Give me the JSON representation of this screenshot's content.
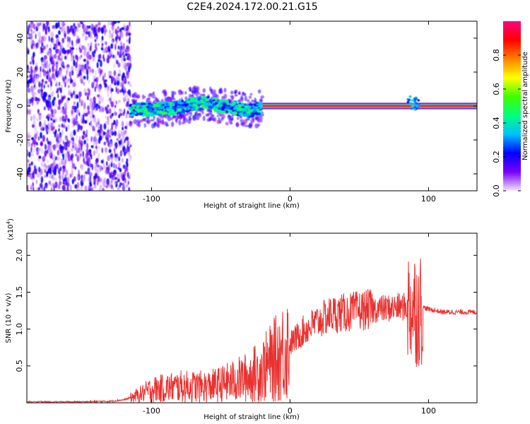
{
  "title": "C2E4.2024.172.00.21.G15",
  "chart_data": [
    {
      "type": "heatmap",
      "xlabel": "Height of straight line (km)",
      "ylabel": "Frequency (Hz)",
      "xlim": [
        -190,
        135
      ],
      "ylim": [
        -50,
        50
      ],
      "xticks": [
        -100,
        0,
        100
      ],
      "yticks": [
        40,
        20,
        0,
        -20,
        -40
      ],
      "colorbar": {
        "label": "Normalized spectral amplitude",
        "range": [
          0,
          1
        ],
        "ticks": [
          0.0,
          0.2,
          0.4,
          0.6,
          0.8
        ],
        "colormap": [
          "#f2e6ff",
          "#7a00ff",
          "#0000ff",
          "#00c0ff",
          "#00ff80",
          "#40ff00",
          "#ffff00",
          "#ff8000",
          "#ff0000",
          "#ff0080"
        ]
      },
      "regions": [
        {
          "name": "noise",
          "x_range": [
            -190,
            -115
          ],
          "freq_range": [
            -50,
            50
          ],
          "amplitude": 0.1
        },
        {
          "name": "scintillating-tone",
          "x_range": [
            -115,
            -20
          ],
          "freq_range": [
            -6,
            6
          ],
          "amplitude": 0.4
        },
        {
          "name": "stable-tone",
          "x_range": [
            -20,
            135
          ],
          "freq": 0,
          "amplitude": 0.95
        }
      ],
      "tone_center": {
        "x": [
          -115,
          -100,
          -80,
          -70,
          -60,
          -50,
          -40,
          -30,
          -20,
          -10,
          0,
          10,
          20,
          40,
          60,
          80,
          90,
          100,
          120,
          135
        ],
        "y": [
          -2,
          -2,
          -1,
          1,
          2,
          0,
          -1,
          -3,
          -1,
          0,
          0,
          0,
          0,
          0,
          0,
          0,
          1,
          0,
          0,
          0
        ]
      }
    },
    {
      "type": "line",
      "xlabel": "Height of straight line (km)",
      "ylabel": "SNR (10 * v/v)",
      "y_scale_note": "(x10",
      "y_scale_exp": "4",
      "y_scale_suffix": ")",
      "xlim": [
        -190,
        135
      ],
      "ylim": [
        0,
        2.3
      ],
      "xticks": [
        -100,
        0,
        100
      ],
      "yticks": [
        0.5,
        1.0,
        1.5,
        2.0
      ],
      "series": [
        {
          "color": "#e8312f",
          "x": [
            -190,
            -160,
            -130,
            -120,
            -110,
            -100,
            -90,
            -80,
            -70,
            -60,
            -50,
            -40,
            -30,
            -20,
            -10,
            0,
            10,
            20,
            30,
            40,
            50,
            60,
            70,
            80,
            85,
            90,
            93,
            95,
            100,
            110,
            120,
            135
          ],
          "y": [
            0.01,
            0.01,
            0.02,
            0.04,
            0.1,
            0.18,
            0.2,
            0.22,
            0.22,
            0.22,
            0.25,
            0.3,
            0.35,
            0.45,
            0.6,
            0.8,
            0.98,
            1.1,
            1.2,
            1.22,
            1.25,
            1.27,
            1.28,
            1.3,
            1.3,
            1.3,
            1.25,
            1.3,
            1.27,
            1.23,
            1.23,
            1.23
          ]
        }
      ]
    }
  ]
}
